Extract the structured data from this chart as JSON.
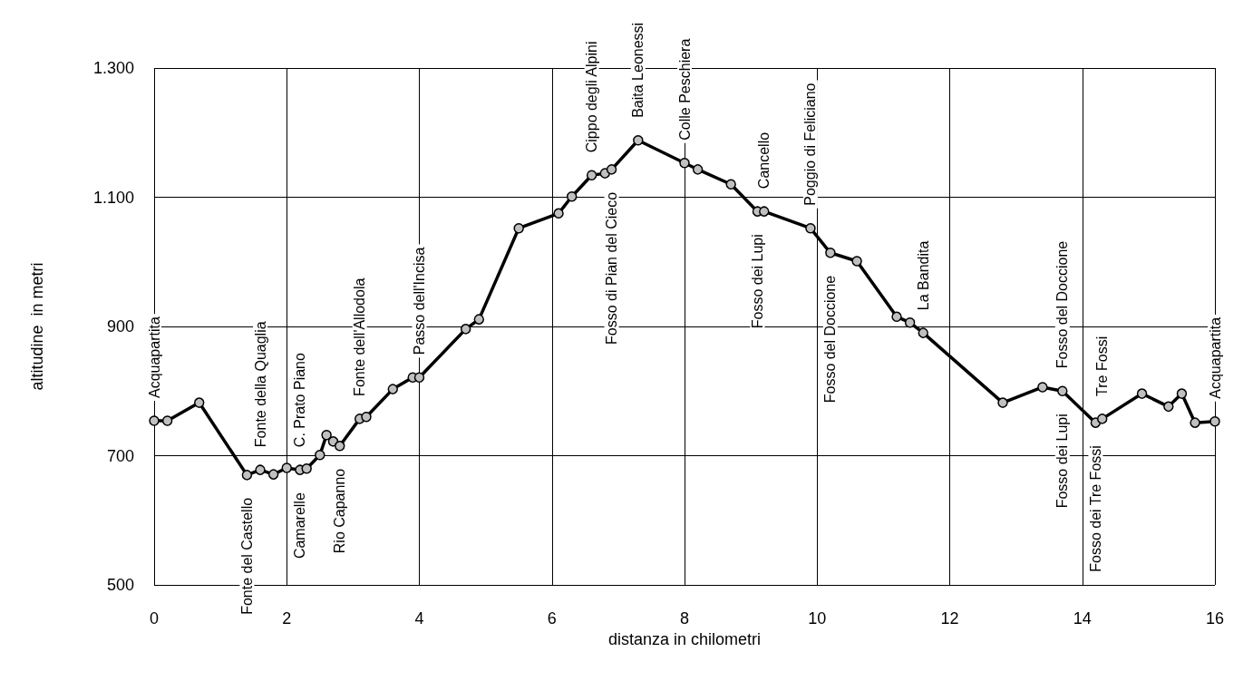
{
  "chart_data": {
    "type": "line",
    "xlabel": "distanza in chilometri",
    "ylabel": "altitudine  in metri",
    "x": [
      0,
      0.2,
      0.68,
      1.4,
      1.6,
      1.8,
      2.0,
      2.2,
      2.3,
      2.5,
      2.6,
      2.7,
      2.8,
      3.1,
      3.2,
      3.6,
      3.9,
      4.0,
      4.7,
      4.9,
      5.5,
      6.1,
      6.3,
      6.6,
      6.8,
      6.9,
      7.3,
      8.0,
      8.2,
      8.7,
      9.1,
      9.2,
      9.9,
      10.2,
      10.6,
      11.2,
      11.4,
      11.6,
      12.8,
      13.4,
      13.7,
      14.2,
      14.3,
      14.9,
      15.3,
      15.5,
      15.7,
      16.0
    ],
    "series": [
      {
        "color": "#000000",
        "values": [
          754,
          754,
          782,
          670,
          678,
          671,
          681,
          678,
          680,
          701,
          732,
          722,
          715,
          757,
          760,
          803,
          821,
          821,
          896,
          911,
          1052,
          1075,
          1101,
          1134,
          1137,
          1143,
          1188,
          1153,
          1143,
          1120,
          1078,
          1078,
          1052,
          1014,
          1001,
          915,
          906,
          890,
          782,
          806,
          800,
          751,
          757,
          796,
          776,
          796,
          751,
          753
        ]
      }
    ],
    "xlim": [
      0,
      16
    ],
    "xticks": [
      0,
      2,
      4,
      6,
      8,
      10,
      12,
      14,
      16
    ],
    "ylim": [
      500,
      1300
    ],
    "yticks": [
      500,
      700,
      900,
      {
        "value": 1100,
        "label": "1.100"
      },
      {
        "value": 1300,
        "label": "1.300"
      }
    ],
    "grid": true,
    "marker": "circle",
    "line_style": "solid",
    "annotations": [
      {
        "text": "Acquapartita",
        "x": 0,
        "y": 754
      },
      {
        "text": "Fonte del Castello",
        "x": 1.4,
        "y": 670
      },
      {
        "text": "Fonte della Quaglia",
        "x": 1.6,
        "y": 678
      },
      {
        "text": "Camarelle",
        "x": 2.2,
        "y": 678
      },
      {
        "text": "C. Prato Piano",
        "x": 2.2,
        "y": 678
      },
      {
        "text": "Rio Capanno",
        "x": 2.8,
        "y": 715
      },
      {
        "text": "Fonte dell'Allodola",
        "x": 3.1,
        "y": 757
      },
      {
        "text": "Passo dell'Incisa",
        "x": 4.0,
        "y": 821
      },
      {
        "text": "Cippo degli Alpini",
        "x": 6.6,
        "y": 1134
      },
      {
        "text": "Fosso di Pian del Cieco",
        "x": 6.9,
        "y": 1143
      },
      {
        "text": "Baita Leonessi",
        "x": 7.3,
        "y": 1188
      },
      {
        "text": "Colle Peschiera",
        "x": 8.0,
        "y": 1153
      },
      {
        "text": "Fosso dei Lupi",
        "x": 9.1,
        "y": 1078
      },
      {
        "text": "Cancello",
        "x": 9.2,
        "y": 1078
      },
      {
        "text": "Poggio di Feliciano",
        "x": 9.9,
        "y": 1052
      },
      {
        "text": "Fosso del Doccione",
        "x": 10.2,
        "y": 1014
      },
      {
        "text": "La Bandita",
        "x": 11.6,
        "y": 890
      },
      {
        "text": "Fosso dei Lupi",
        "x": 13.7,
        "y": 800
      },
      {
        "text": "Fosso del Doccione",
        "x": 13.7,
        "y": 800
      },
      {
        "text": "Fosso dei Tre Fossi",
        "x": 14.2,
        "y": 751
      },
      {
        "text": "Tre Fossi",
        "x": 14.3,
        "y": 757
      },
      {
        "text": "Acquapartita",
        "x": 16.0,
        "y": 753
      }
    ]
  }
}
